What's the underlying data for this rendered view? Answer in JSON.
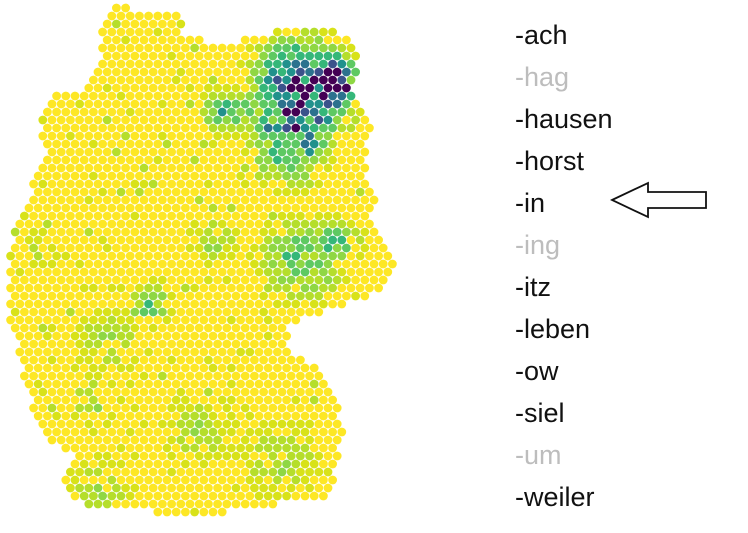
{
  "map": {
    "region": "Germany",
    "colors": {
      "background_low": "#fde725",
      "low": "#d8e219",
      "low_mid": "#b5de2b",
      "mid_light": "#8fd744",
      "mid": "#5ec962",
      "mid_green": "#35b779",
      "teal": "#21918c",
      "blue_teal": "#2c728e",
      "blue": "#3b528b",
      "high": "#440154"
    }
  },
  "suffixes": [
    {
      "label": "-ach",
      "active": true
    },
    {
      "label": "-hag",
      "active": false
    },
    {
      "label": "-hausen",
      "active": true
    },
    {
      "label": "-horst",
      "active": true
    },
    {
      "label": "-in",
      "active": true,
      "selected": true
    },
    {
      "label": "-ing",
      "active": false
    },
    {
      "label": "-itz",
      "active": true
    },
    {
      "label": "-leben",
      "active": true
    },
    {
      "label": "-ow",
      "active": true
    },
    {
      "label": "-siel",
      "active": true
    },
    {
      "label": "-um",
      "active": false
    },
    {
      "label": "-weiler",
      "active": true
    }
  ],
  "arrow": {
    "icon": "left-arrow-icon",
    "points_to": "-in"
  }
}
